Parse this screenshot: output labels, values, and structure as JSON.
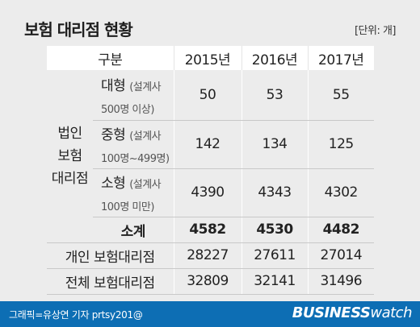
{
  "title": "보험 대리점 현황",
  "unit": "[단위: 개]",
  "columns": [
    "구분",
    "2015년",
    "2016년",
    "2017년"
  ],
  "group_label": [
    "법인",
    "보험",
    "대리점"
  ],
  "rows": [
    {
      "name": "대형",
      "note": "(설계사",
      "note2": "500명 이상)",
      "values": [
        "50",
        "53",
        "55"
      ]
    },
    {
      "name": "중형",
      "note": "(설계사",
      "note2": "100명~499명)",
      "values": [
        "142",
        "134",
        "125"
      ]
    },
    {
      "name": "소형",
      "note": "(설계사",
      "note2": "100명 미만)",
      "values": [
        "4390",
        "4343",
        "4302"
      ]
    },
    {
      "name": "소계",
      "values": [
        "4582",
        "4530",
        "4482"
      ]
    }
  ],
  "individual": {
    "label": "개인 보험대리점",
    "values": [
      "28227",
      "27611",
      "27014"
    ]
  },
  "total": {
    "label": "전체 보험대리점",
    "values": [
      "32809",
      "32141",
      "31496"
    ]
  },
  "footer": {
    "credit": "그래픽=유상연 기자 prtsy201@",
    "brand_bold": "BUSINESS",
    "brand_light": "watch"
  },
  "colors": {
    "footer_bg": "#0d6eb4",
    "header_bg": "#ffffff",
    "page_bg": "#ececec"
  }
}
